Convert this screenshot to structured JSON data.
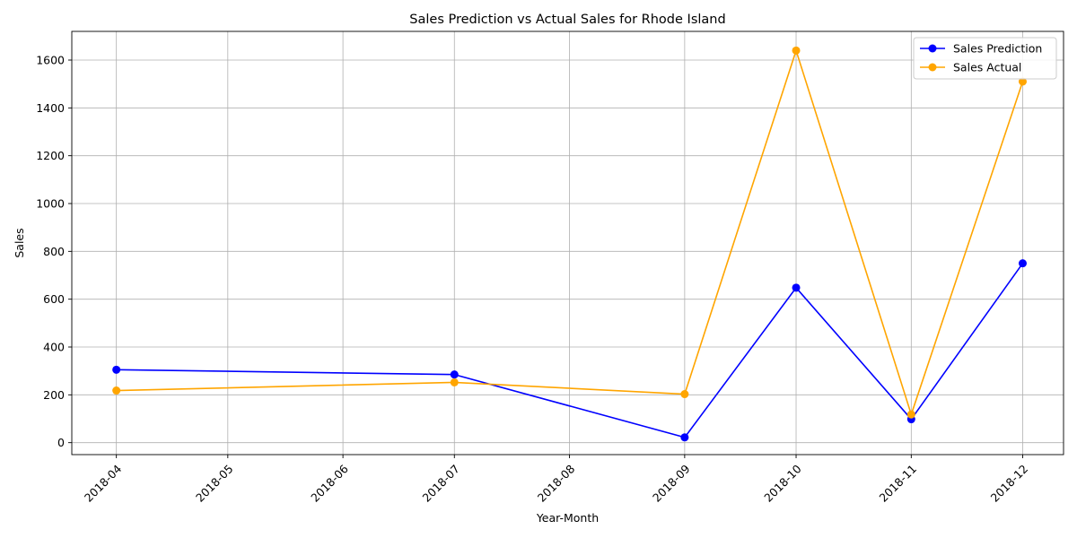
{
  "chart_data": {
    "type": "line",
    "title": "Sales Prediction vs Actual Sales for Rhode Island",
    "xlabel": "Year-Month",
    "ylabel": "Sales",
    "x_ticks": [
      "2018-04",
      "2018-05",
      "2018-06",
      "2018-07",
      "2018-08",
      "2018-09",
      "2018-10",
      "2018-11",
      "2018-12"
    ],
    "y_ticks": [
      0,
      200,
      400,
      600,
      800,
      1000,
      1200,
      1400,
      1600
    ],
    "ylim": [
      -50,
      1720
    ],
    "xlim": [
      "2018-03-20",
      "2018-12-12"
    ],
    "grid": true,
    "legend_position": "top-right",
    "series": [
      {
        "name": "Sales Prediction",
        "color": "#0000ff",
        "marker": "circle",
        "x": [
          "2018-04-01",
          "2018-07-01",
          "2018-09-01",
          "2018-10-01",
          "2018-11-01",
          "2018-12-01"
        ],
        "values": [
          305,
          285,
          22,
          648,
          98,
          750
        ]
      },
      {
        "name": "Sales Actual",
        "color": "#ffa500",
        "marker": "circle",
        "x": [
          "2018-04-01",
          "2018-07-01",
          "2018-09-01",
          "2018-10-01",
          "2018-11-01",
          "2018-12-01"
        ],
        "values": [
          218,
          252,
          203,
          1640,
          118,
          1510
        ]
      }
    ]
  }
}
